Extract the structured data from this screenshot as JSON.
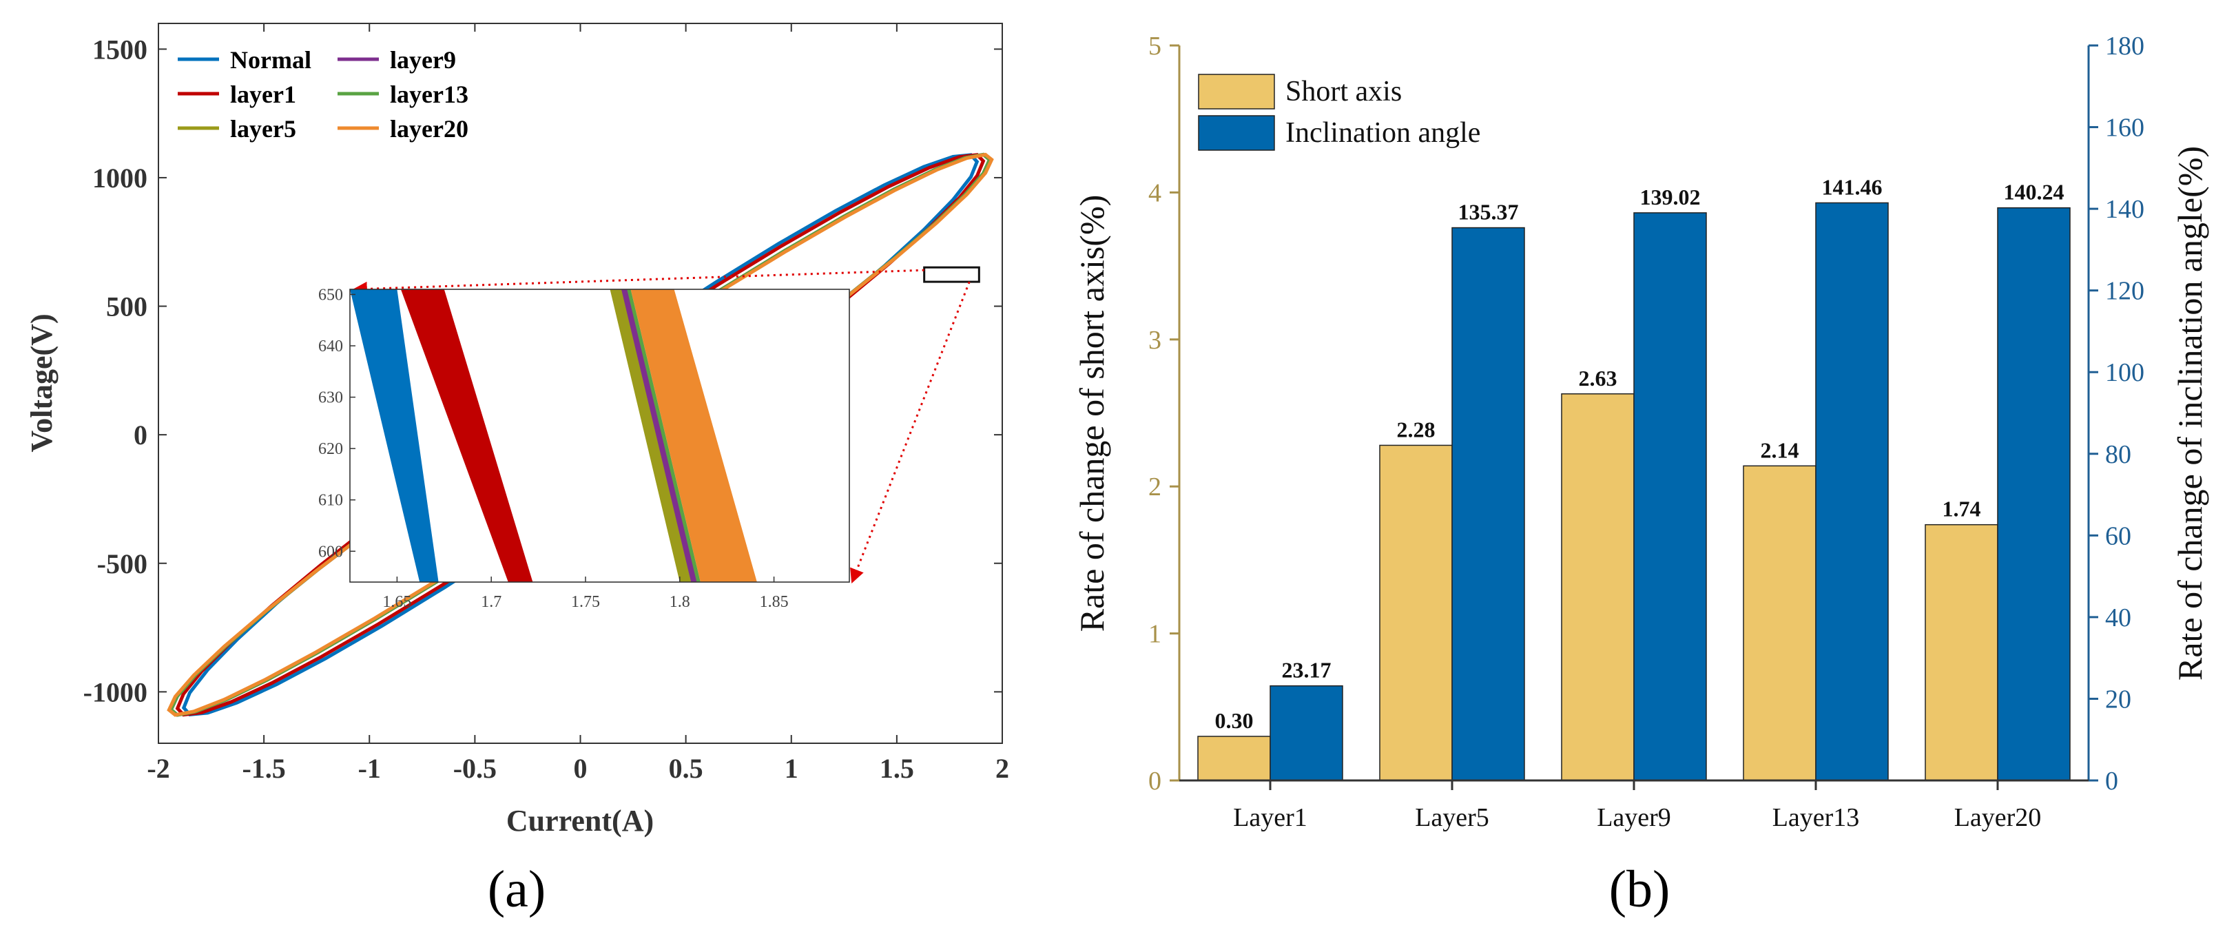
{
  "panels": {
    "a_label": "(a)",
    "b_label": "(b)"
  },
  "chart_data": [
    {
      "id": "a",
      "type": "line",
      "title": "",
      "xlabel": "Current(A)",
      "ylabel": "Voltage(V)",
      "xlim": [
        -2,
        2
      ],
      "ylim": [
        -1200,
        1600
      ],
      "xticks": [
        -2,
        -1.5,
        -1,
        -0.5,
        0,
        0.5,
        1,
        1.5,
        2
      ],
      "xtick_labels": [
        "-2",
        "-1.5",
        "-1",
        "-0.5",
        "0",
        "0.5",
        "1",
        "1.5",
        "2"
      ],
      "yticks": [
        -1000,
        -500,
        0,
        500,
        1000,
        1500
      ],
      "ytick_labels": [
        "-1000",
        "-500",
        "0",
        "500",
        "1000",
        "1500"
      ],
      "legend_position": "top-left",
      "series": [
        {
          "name": "Normal",
          "color": "#0072BD",
          "amp_x": 1.88,
          "amp_y": 1090,
          "phase_deg": 13.0
        },
        {
          "name": "layer1",
          "color": "#C00000",
          "amp_x": 1.91,
          "amp_y": 1090,
          "phase_deg": 12.4
        },
        {
          "name": "layer5",
          "color": "#9B9B1A",
          "amp_x": 1.94,
          "amp_y": 1090,
          "phase_deg": 11.1
        },
        {
          "name": "layer9",
          "color": "#7E2F8E",
          "amp_x": 1.94,
          "amp_y": 1090,
          "phase_deg": 11.1
        },
        {
          "name": "layer13",
          "color": "#59A343",
          "amp_x": 1.94,
          "amp_y": 1090,
          "phase_deg": 11.1
        },
        {
          "name": "layer20",
          "color": "#EE8A2E",
          "amp_x": 1.95,
          "amp_y": 1090,
          "phase_deg": 10.9
        }
      ],
      "zoom_box": {
        "xlim": [
          1.63,
          1.89
        ],
        "ylim": [
          595,
          651
        ]
      },
      "inset": {
        "xlim": [
          1.625,
          1.89
        ],
        "ylim": [
          594,
          651
        ],
        "xticks": [
          1.65,
          1.7,
          1.75,
          1.8,
          1.85
        ],
        "xtick_labels": [
          "1.65",
          "1.7",
          "1.75",
          "1.8",
          "1.85"
        ],
        "yticks": [
          600,
          610,
          620,
          630,
          640,
          650
        ],
        "ytick_labels": [
          "600",
          "610",
          "620",
          "630",
          "640",
          "650"
        ],
        "bands": [
          {
            "name": "Normal",
            "color": "#0072BD",
            "top": [
              1.625,
              1.65
            ],
            "bottom": [
              1.662,
              1.672
            ]
          },
          {
            "name": "layer1",
            "color": "#C00000",
            "top": [
              1.652,
              1.675
            ],
            "bottom": [
              1.709,
              1.722
            ]
          },
          {
            "name": "layer5",
            "color": "#9B9B1A",
            "top": [
              1.763,
              1.771
            ],
            "bottom": [
              1.8,
              1.806
            ]
          },
          {
            "name": "layer13",
            "color": "#59A343",
            "top": [
              1.771,
              1.774
            ],
            "bottom": [
              1.806,
              1.811
            ]
          },
          {
            "name": "layer9",
            "color": "#7E2F8E",
            "top": [
              1.769,
              1.772
            ],
            "bottom": [
              1.806,
              1.809
            ]
          },
          {
            "name": "layer20",
            "color": "#EE8A2E",
            "top": [
              1.774,
              1.797
            ],
            "bottom": [
              1.811,
              1.841
            ]
          }
        ]
      }
    },
    {
      "id": "b",
      "type": "bar",
      "title": "",
      "xlabel": "",
      "ylabel": "Rate of change of short axis(%)",
      "y2label": "Rate of change of inclination angle(%)",
      "categories": [
        "Layer1",
        "Layer5",
        "Layer9",
        "Layer13",
        "Layer20"
      ],
      "ylim": [
        0,
        5
      ],
      "y2lim": [
        0,
        180
      ],
      "yticks": [
        0,
        1,
        2,
        3,
        4,
        5
      ],
      "ytick_labels": [
        "0",
        "1",
        "2",
        "3",
        "4",
        "5"
      ],
      "y2ticks": [
        0,
        20,
        40,
        60,
        80,
        100,
        120,
        140,
        160,
        180
      ],
      "y2tick_labels": [
        "0",
        "20",
        "40",
        "60",
        "80",
        "100",
        "120",
        "140",
        "160",
        "180"
      ],
      "legend_position": "top-left",
      "series": [
        {
          "name": "Short axis",
          "axis": "left",
          "color": "#EDC66A",
          "values": [
            0.3,
            2.28,
            2.63,
            2.14,
            1.74
          ],
          "labels": [
            "0.30",
            "2.28",
            "2.63",
            "2.14",
            "1.74"
          ]
        },
        {
          "name": "Inclination angle",
          "axis": "right",
          "color": "#0067AC",
          "values": [
            23.17,
            135.37,
            139.02,
            141.46,
            140.24
          ],
          "labels": [
            "23.17",
            "135.37",
            "139.02",
            "141.46",
            "140.24"
          ]
        }
      ],
      "left_axis_color": "#A8914A",
      "right_axis_color": "#1F5F94"
    }
  ]
}
